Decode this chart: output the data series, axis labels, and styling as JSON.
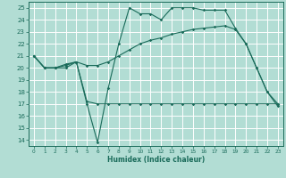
{
  "xlabel": "Humidex (Indice chaleur)",
  "xlim": [
    -0.5,
    23.5
  ],
  "ylim": [
    13.5,
    25.5
  ],
  "yticks": [
    14,
    15,
    16,
    17,
    18,
    19,
    20,
    21,
    22,
    23,
    24,
    25
  ],
  "xticks": [
    0,
    1,
    2,
    3,
    4,
    5,
    6,
    7,
    8,
    9,
    10,
    11,
    12,
    13,
    14,
    15,
    16,
    17,
    18,
    19,
    20,
    21,
    22,
    23
  ],
  "background_color": "#b2ddd4",
  "grid_color": "#ffffff",
  "line_color": "#1a6b5a",
  "lines": [
    [
      21.0,
      20.0,
      20.0,
      20.0,
      20.5,
      17.0,
      13.8,
      18.3,
      22.0,
      25.0,
      24.5,
      24.5,
      24.0,
      25.0,
      25.0,
      25.0,
      24.8,
      24.8,
      24.8,
      23.3,
      22.0,
      20.0,
      18.0,
      16.8
    ],
    [
      21.0,
      20.0,
      20.0,
      20.3,
      20.5,
      20.2,
      20.2,
      20.5,
      21.0,
      21.5,
      22.0,
      22.3,
      22.5,
      22.8,
      23.0,
      23.2,
      23.3,
      23.4,
      23.5,
      23.2,
      22.0,
      20.0,
      18.0,
      17.0
    ],
    [
      21.0,
      20.0,
      20.0,
      20.2,
      20.5,
      17.2,
      17.0,
      17.0,
      17.0,
      17.0,
      17.0,
      17.0,
      17.0,
      17.0,
      17.0,
      17.0,
      17.0,
      17.0,
      17.0,
      17.0,
      17.0,
      17.0,
      17.0,
      17.0
    ]
  ]
}
